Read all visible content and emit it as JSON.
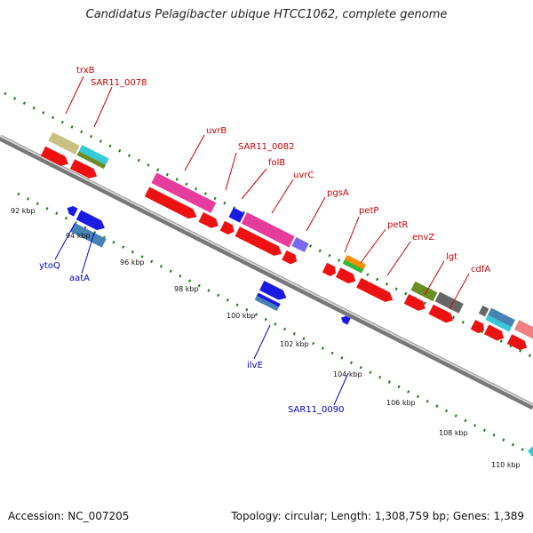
{
  "title": "Candidatus Pelagibacter ubique HTCC1062, complete genome",
  "footer": {
    "accession": "Accession: NC_007205",
    "summary": "Topology: circular; Length: 1,308,759 bp; Genes: 1,389"
  },
  "colors": {
    "forward_label": "#cc0000",
    "reverse_label": "#0000cc",
    "tick": "#1a7a1a",
    "backbone": "#8a8a8a"
  },
  "ticks": [
    "92 kbp",
    "94 kbp",
    "96 kbp",
    "98 kbp",
    "100 kbp",
    "102 kbp",
    "104 kbp",
    "106 kbp",
    "108 kbp",
    "110 kbp"
  ],
  "forward_labels": [
    "trxB",
    "SAR11_0078",
    "uvrB",
    "SAR11_0082",
    "folB",
    "uvrC",
    "pgsA",
    "petP",
    "petR",
    "envZ",
    "lgt",
    "cdfA"
  ],
  "reverse_labels": [
    "ytoQ",
    "aatA",
    "ilvE",
    "SAR11_0090"
  ]
}
